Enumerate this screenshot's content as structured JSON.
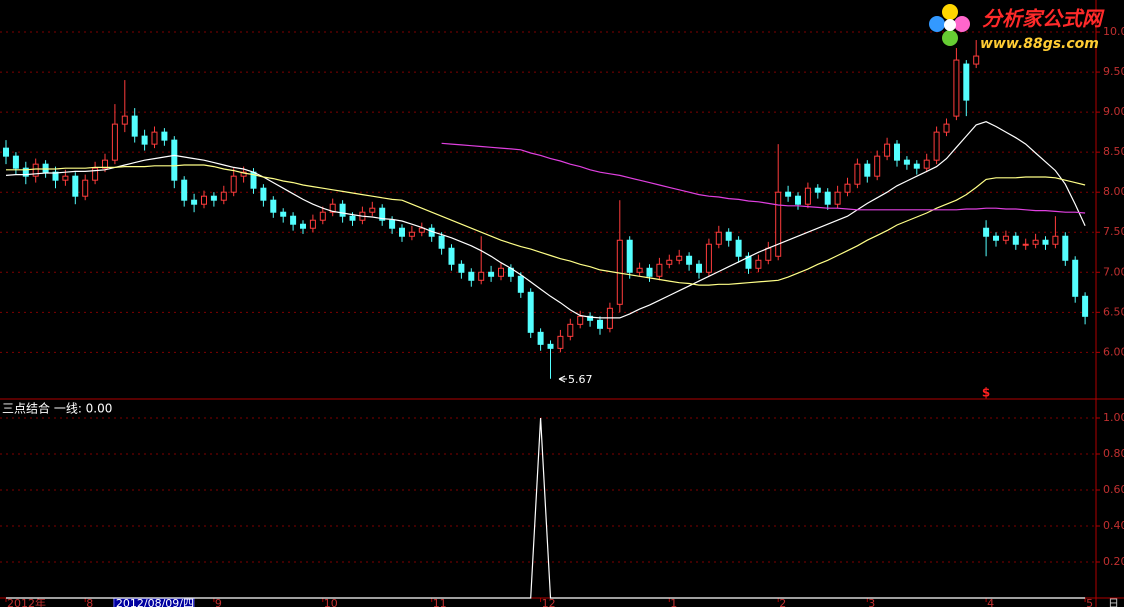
{
  "logo": {
    "name": "分析家公式网",
    "url": "www.88gs.com"
  },
  "chart_data": [
    {
      "type": "candlestick",
      "categories": [
        "2012年",
        null,
        null,
        null,
        null,
        null,
        null,
        null,
        "8",
        null,
        null,
        "2012/08/09/四",
        null,
        null,
        null,
        null,
        null,
        null,
        null,
        null,
        null,
        "9",
        null,
        null,
        null,
        null,
        null,
        null,
        null,
        null,
        null,
        null,
        "10",
        null,
        null,
        null,
        null,
        null,
        null,
        null,
        null,
        null,
        null,
        "11",
        null,
        null,
        null,
        null,
        null,
        null,
        null,
        null,
        null,
        null,
        "12",
        null,
        null,
        null,
        null,
        null,
        null,
        null,
        null,
        null,
        null,
        null,
        null,
        "1",
        null,
        null,
        null,
        null,
        null,
        null,
        null,
        null,
        null,
        null,
        "2",
        null,
        null,
        null,
        null,
        null,
        null,
        null,
        null,
        "3",
        null,
        null,
        null,
        null,
        null,
        null,
        null,
        null,
        null,
        null,
        null,
        "4",
        null,
        null,
        null,
        null,
        null,
        null,
        null,
        null,
        null,
        "5"
      ],
      "selected_category": 11,
      "period": "日",
      "signal": "$",
      "candles": {
        "open": [
          8.55,
          8.45,
          8.3,
          8.2,
          8.35,
          8.25,
          8.15,
          8.2,
          7.95,
          8.15,
          8.3,
          8.4,
          8.85,
          8.95,
          8.7,
          8.6,
          8.75,
          8.65,
          8.15,
          7.9,
          7.85,
          7.95,
          7.9,
          8.0,
          8.2,
          8.25,
          8.05,
          7.9,
          7.75,
          7.7,
          7.6,
          7.55,
          7.65,
          7.75,
          7.85,
          7.7,
          7.65,
          7.75,
          7.8,
          7.65,
          7.55,
          7.45,
          7.5,
          7.55,
          7.45,
          7.3,
          7.1,
          7.0,
          6.9,
          7.0,
          6.95,
          7.05,
          6.95,
          6.75,
          6.25,
          6.1,
          6.05,
          6.2,
          6.35,
          6.45,
          6.4,
          6.3,
          6.6,
          7.4,
          7.0,
          7.05,
          6.95,
          7.1,
          7.15,
          7.2,
          7.1,
          7.0,
          7.35,
          7.5,
          7.4,
          7.2,
          7.05,
          7.15,
          7.2,
          8.0,
          7.95,
          7.85,
          8.05,
          8.0,
          7.85,
          8.0,
          8.1,
          8.35,
          8.2,
          8.45,
          8.6,
          8.4,
          8.35,
          8.3,
          8.4,
          8.75,
          8.95,
          9.6,
          9.6,
          7.55,
          7.45,
          7.4,
          7.45,
          7.35,
          7.35,
          7.4,
          7.35,
          7.45,
          7.15,
          6.7
        ],
        "high": [
          8.65,
          8.5,
          8.38,
          8.42,
          8.4,
          8.32,
          8.28,
          8.25,
          8.22,
          8.38,
          8.48,
          9.1,
          9.4,
          9.05,
          8.78,
          8.82,
          8.8,
          8.7,
          8.2,
          7.98,
          8.02,
          8.0,
          8.08,
          8.3,
          8.32,
          8.3,
          8.1,
          7.95,
          7.8,
          7.75,
          7.65,
          7.72,
          7.82,
          7.92,
          7.9,
          7.75,
          7.82,
          7.88,
          7.85,
          7.7,
          7.6,
          7.58,
          7.62,
          7.6,
          7.5,
          7.35,
          7.15,
          7.05,
          7.45,
          7.08,
          7.12,
          7.1,
          7.0,
          6.8,
          6.3,
          6.15,
          6.28,
          6.42,
          6.52,
          6.5,
          6.45,
          6.62,
          7.9,
          7.45,
          7.12,
          7.1,
          7.18,
          7.22,
          7.28,
          7.25,
          7.15,
          7.42,
          7.58,
          7.55,
          7.45,
          7.25,
          7.22,
          7.38,
          8.6,
          8.08,
          8.0,
          8.12,
          8.1,
          8.05,
          8.08,
          8.18,
          8.42,
          8.4,
          8.52,
          8.68,
          8.65,
          8.45,
          8.4,
          8.48,
          8.82,
          8.92,
          9.8,
          9.65,
          9.9,
          7.65,
          7.5,
          7.52,
          7.5,
          7.42,
          7.48,
          7.45,
          7.7,
          7.5,
          7.2,
          6.75
        ],
        "low": [
          8.35,
          8.22,
          8.1,
          8.12,
          8.18,
          8.05,
          8.08,
          7.85,
          7.9,
          8.1,
          8.25,
          8.35,
          8.75,
          8.62,
          8.52,
          8.55,
          8.58,
          8.05,
          7.82,
          7.75,
          7.8,
          7.82,
          7.85,
          7.95,
          8.12,
          7.98,
          7.82,
          7.68,
          7.62,
          7.52,
          7.48,
          7.5,
          7.6,
          7.7,
          7.62,
          7.58,
          7.6,
          7.7,
          7.58,
          7.48,
          7.38,
          7.4,
          7.45,
          7.38,
          7.22,
          7.02,
          6.92,
          6.82,
          6.85,
          6.88,
          6.9,
          6.88,
          6.68,
          6.18,
          6.02,
          5.67,
          6.0,
          6.15,
          6.3,
          6.32,
          6.22,
          6.25,
          6.5,
          6.92,
          6.95,
          6.88,
          6.9,
          7.05,
          7.1,
          7.02,
          6.92,
          6.95,
          7.3,
          7.32,
          7.12,
          6.98,
          7.0,
          7.1,
          7.15,
          7.88,
          7.78,
          7.8,
          7.92,
          7.78,
          7.8,
          7.95,
          8.05,
          8.12,
          8.15,
          8.4,
          8.32,
          8.28,
          8.22,
          8.25,
          8.35,
          8.7,
          8.9,
          8.95,
          9.55,
          7.2,
          7.32,
          7.35,
          7.28,
          7.28,
          7.3,
          7.28,
          7.3,
          7.08,
          6.62,
          6.35
        ],
        "close": [
          8.45,
          8.3,
          8.2,
          8.35,
          8.25,
          8.15,
          8.2,
          7.95,
          8.15,
          8.3,
          8.4,
          8.85,
          8.95,
          8.7,
          8.6,
          8.75,
          8.65,
          8.15,
          7.9,
          7.85,
          7.95,
          7.9,
          8.0,
          8.2,
          8.25,
          8.05,
          7.9,
          7.75,
          7.7,
          7.6,
          7.55,
          7.65,
          7.75,
          7.85,
          7.7,
          7.65,
          7.75,
          7.8,
          7.65,
          7.55,
          7.45,
          7.5,
          7.55,
          7.45,
          7.3,
          7.1,
          7.0,
          6.9,
          7.0,
          6.95,
          7.05,
          6.95,
          6.75,
          6.25,
          6.1,
          6.05,
          6.2,
          6.35,
          6.45,
          6.4,
          6.3,
          6.55,
          7.4,
          7.0,
          7.05,
          6.95,
          7.1,
          7.15,
          7.2,
          7.1,
          7.0,
          7.35,
          7.5,
          7.4,
          7.2,
          7.05,
          7.15,
          7.3,
          8.0,
          7.95,
          7.85,
          8.05,
          8.0,
          7.85,
          8.0,
          8.1,
          8.35,
          8.2,
          8.45,
          8.6,
          8.4,
          8.35,
          8.3,
          8.4,
          8.75,
          8.85,
          9.65,
          9.15,
          9.7,
          7.45,
          7.4,
          7.45,
          7.35,
          7.35,
          7.4,
          7.35,
          7.45,
          7.15,
          6.7,
          6.45
        ]
      },
      "up_color": "#ff3c3c",
      "down_color": "#54ffff",
      "series": [
        {
          "color": "#ffffff",
          "values": [
            8.21,
            8.22,
            8.22,
            8.23,
            8.24,
            8.24,
            8.25,
            8.26,
            8.26,
            8.27,
            8.28,
            8.31,
            8.34,
            8.37,
            8.4,
            8.42,
            8.44,
            8.46,
            8.44,
            8.42,
            8.4,
            8.37,
            8.34,
            8.31,
            8.29,
            8.25,
            8.19,
            8.12,
            8.05,
            7.98,
            7.91,
            7.85,
            7.8,
            7.76,
            7.74,
            7.72,
            7.7,
            7.69,
            7.67,
            7.66,
            7.64,
            7.6,
            7.56,
            7.51,
            7.47,
            7.43,
            7.38,
            7.33,
            7.27,
            7.2,
            7.12,
            7.05,
            6.97,
            6.88,
            6.79,
            6.7,
            6.62,
            6.53,
            6.46,
            6.44,
            6.43,
            6.43,
            6.43,
            6.48,
            6.54,
            6.59,
            6.65,
            6.71,
            6.77,
            6.83,
            6.89,
            6.95,
            7.01,
            7.07,
            7.13,
            7.19,
            7.25,
            7.3,
            7.35,
            7.4,
            7.45,
            7.5,
            7.55,
            7.6,
            7.65,
            7.7,
            7.78,
            7.86,
            7.93,
            8.0,
            8.08,
            8.14,
            8.2,
            8.26,
            8.32,
            8.42,
            8.56,
            8.7,
            8.84,
            8.88,
            8.82,
            8.75,
            8.68,
            8.6,
            8.49,
            8.38,
            8.27,
            8.1,
            7.85,
            7.58
          ]
        },
        {
          "color": "#ffff88",
          "values": [
            8.28,
            8.28,
            8.28,
            8.29,
            8.29,
            8.29,
            8.3,
            8.3,
            8.3,
            8.31,
            8.31,
            8.31,
            8.32,
            8.32,
            8.32,
            8.33,
            8.33,
            8.33,
            8.34,
            8.34,
            8.34,
            8.32,
            8.29,
            8.27,
            8.24,
            8.22,
            8.19,
            8.17,
            8.14,
            8.12,
            8.09,
            8.07,
            8.05,
            8.03,
            8.01,
            7.99,
            7.97,
            7.95,
            7.93,
            7.91,
            7.9,
            7.85,
            7.8,
            7.75,
            7.7,
            7.65,
            7.6,
            7.55,
            7.5,
            7.45,
            7.4,
            7.36,
            7.32,
            7.29,
            7.25,
            7.21,
            7.17,
            7.14,
            7.1,
            7.07,
            7.03,
            7.01,
            6.99,
            6.97,
            6.95,
            6.93,
            6.91,
            6.89,
            6.87,
            6.86,
            6.84,
            6.84,
            6.85,
            6.85,
            6.86,
            6.87,
            6.88,
            6.89,
            6.9,
            6.94,
            6.99,
            7.04,
            7.1,
            7.15,
            7.21,
            7.27,
            7.33,
            7.4,
            7.46,
            7.52,
            7.59,
            7.64,
            7.69,
            7.74,
            7.8,
            7.85,
            7.9,
            7.97,
            8.06,
            8.16,
            8.18,
            8.18,
            8.18,
            8.19,
            8.19,
            8.19,
            8.18,
            8.15,
            8.12,
            8.09
          ]
        },
        {
          "color": "#e040e0",
          "values": [
            null,
            null,
            null,
            null,
            null,
            null,
            null,
            null,
            null,
            null,
            null,
            null,
            null,
            null,
            null,
            null,
            null,
            null,
            null,
            null,
            null,
            null,
            null,
            null,
            null,
            null,
            null,
            null,
            null,
            null,
            null,
            null,
            null,
            null,
            null,
            null,
            null,
            null,
            null,
            null,
            null,
            null,
            null,
            null,
            8.61,
            8.6,
            8.59,
            8.58,
            8.57,
            8.56,
            8.55,
            8.54,
            8.53,
            8.49,
            8.46,
            8.42,
            8.39,
            8.35,
            8.32,
            8.28,
            8.25,
            8.23,
            8.21,
            8.18,
            8.15,
            8.12,
            8.09,
            8.06,
            8.03,
            8.0,
            7.97,
            7.95,
            7.94,
            7.92,
            7.91,
            7.89,
            7.88,
            7.86,
            7.84,
            7.83,
            7.83,
            7.82,
            7.81,
            7.8,
            7.8,
            7.79,
            7.78,
            7.78,
            7.78,
            7.78,
            7.78,
            7.78,
            7.78,
            7.78,
            7.78,
            7.78,
            7.78,
            7.79,
            7.79,
            7.8,
            7.8,
            7.79,
            7.79,
            7.78,
            7.77,
            7.77,
            7.76,
            7.75,
            7.75,
            7.74
          ]
        }
      ],
      "ylim": [
        5.43,
        10.4
      ],
      "yticks": [
        {
          "value": 6,
          "label": "6.00"
        },
        {
          "value": 6.5,
          "label": "6.50"
        },
        {
          "value": 7,
          "label": "7.00"
        },
        {
          "value": 7.5,
          "label": "7.50"
        },
        {
          "value": 8,
          "label": "8.00"
        },
        {
          "value": 8.5,
          "label": "8.50"
        },
        {
          "value": 9,
          "label": "9.00"
        },
        {
          "value": 9.5,
          "label": "9.50"
        },
        {
          "value": 10,
          "label": "10.00"
        }
      ],
      "grid": true
    },
    {
      "type": "line",
      "title": "三点结合  一线: 0.00",
      "color": "#ffffff",
      "values": [
        0,
        0,
        0,
        0,
        0,
        0,
        0,
        0,
        0,
        0,
        0,
        0,
        0,
        0,
        0,
        0,
        0,
        0,
        0,
        0,
        0,
        0,
        0,
        0,
        0,
        0,
        0,
        0,
        0,
        0,
        0,
        0,
        0,
        0,
        0,
        0,
        0,
        0,
        0,
        0,
        0,
        0,
        0,
        0,
        0,
        0,
        0,
        0,
        0,
        0,
        0,
        0,
        0,
        0,
        1,
        0,
        0,
        0,
        0,
        0,
        0,
        0,
        0,
        0,
        0,
        0,
        0,
        0,
        0,
        0,
        0,
        0,
        0,
        0,
        0,
        0,
        0,
        0,
        0,
        0,
        0,
        0,
        0,
        0,
        0,
        0,
        0,
        0,
        0,
        0,
        0,
        0,
        0,
        0,
        0,
        0,
        0,
        0,
        0,
        0,
        0,
        0,
        0,
        0,
        0,
        0,
        0,
        0,
        0,
        0
      ],
      "ylim": [
        0,
        1.1
      ],
      "yticks": [
        {
          "value": 0.2,
          "label": "0.20"
        },
        {
          "value": 0.4,
          "label": "0.40"
        },
        {
          "value": 0.6,
          "label": "0.60"
        },
        {
          "value": 0.8,
          "label": "0.80"
        },
        {
          "value": 1,
          "label": "1.00"
        }
      ],
      "grid": true
    }
  ]
}
